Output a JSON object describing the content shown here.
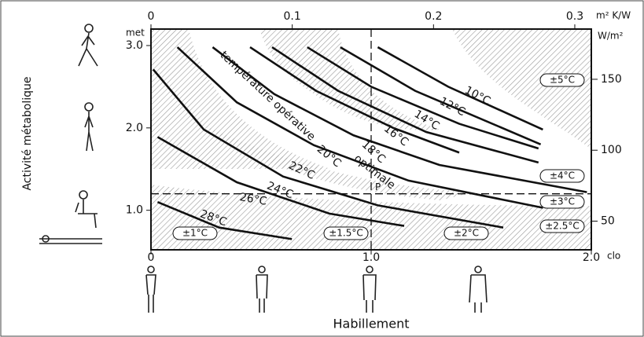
{
  "chart_data": {
    "type": "line",
    "y_axis_label": "Activité métabolique",
    "x_axis_label": "Habillement",
    "y_unit": "met",
    "x_unit": "clo",
    "x2_unit": "m² K/W",
    "y2_unit": "W/m²",
    "annotation_1": "température opérative",
    "annotation_2": "optimale",
    "point_label": "P",
    "xlim": [
      0,
      2
    ],
    "xticks": [
      0,
      {
        "value": 1,
        "label": "1.0"
      },
      {
        "value": 2,
        "label": "2.0"
      }
    ],
    "ylim": [
      0.52,
      3.2
    ],
    "yticks": [
      {
        "value": 1,
        "label": "1.0"
      },
      {
        "value": 2,
        "label": "2.0"
      },
      {
        "value": 3,
        "label": "3.0"
      }
    ],
    "x2lim": [
      0,
      0.3117
    ],
    "x2ticks": [
      0,
      0.1,
      0.2,
      0.3
    ],
    "y2lim": [
      29.8,
      185.4
    ],
    "y2ticks": [
      50,
      100,
      150
    ],
    "reference_x": 1,
    "reference_y": 1.2,
    "zone_labels": [
      "±5°C",
      "±4°C",
      "±3°C",
      "±2.5°C",
      "±1°C",
      "±1.5°C",
      "±2°C"
    ],
    "series": [
      {
        "name": "10°C",
        "color": "#111",
        "x": [
          1.03,
          1.35,
          1.78
        ],
        "values": [
          2.98,
          2.5,
          1.98
        ]
      },
      {
        "name": "12°C",
        "color": "#111",
        "x": [
          0.86,
          1.2,
          1.77
        ],
        "values": [
          2.98,
          2.45,
          1.8
        ]
      },
      {
        "name": "14°C",
        "color": "#111",
        "x": [
          0.71,
          1.0,
          1.4,
          1.76
        ],
        "values": [
          2.98,
          2.5,
          2.05,
          1.75
        ]
      },
      {
        "name": "16°C",
        "color": "#111",
        "x": [
          0.55,
          0.85,
          1.25,
          1.76
        ],
        "values": [
          2.98,
          2.45,
          1.95,
          1.58
        ]
      },
      {
        "name": "18°C",
        "color": "#111",
        "x": [
          0.45,
          0.75,
          1.1,
          1.4
        ],
        "values": [
          2.98,
          2.45,
          2.0,
          1.7
        ]
      },
      {
        "name": "20°C",
        "color": "#111",
        "x": [
          0.28,
          0.56,
          0.92,
          1.31,
          1.98
        ],
        "values": [
          2.98,
          2.41,
          1.91,
          1.55,
          1.22
        ]
      },
      {
        "name": "22°C",
        "color": "#111",
        "x": [
          0.12,
          0.39,
          0.74,
          1.17,
          1.78
        ],
        "values": [
          2.98,
          2.31,
          1.79,
          1.36,
          1.03
        ]
      },
      {
        "name": "24°C",
        "color": "#111",
        "x": [
          0.01,
          0.24,
          0.6,
          1.03,
          1.6
        ],
        "values": [
          2.71,
          1.98,
          1.41,
          1.06,
          0.79
        ]
      },
      {
        "name": "26°C",
        "color": "#111",
        "x": [
          0.03,
          0.39,
          0.81,
          1.15
        ],
        "values": [
          1.89,
          1.34,
          0.96,
          0.81
        ]
      },
      {
        "name": "28°C",
        "color": "#111",
        "x": [
          0.03,
          0.31,
          0.64
        ],
        "values": [
          1.1,
          0.79,
          0.65
        ]
      }
    ]
  }
}
